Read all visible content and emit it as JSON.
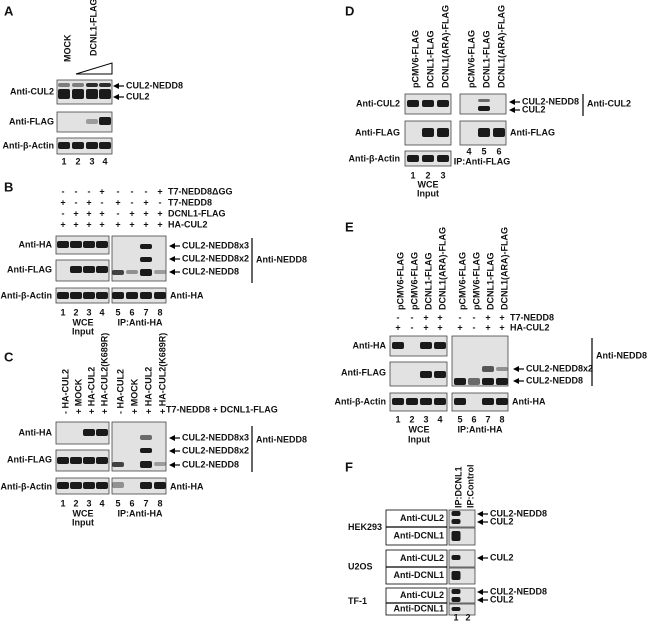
{
  "panel_a": {
    "label": "A",
    "lanes": [
      "MOCK",
      "DCNL1-FLAG"
    ],
    "rows": [
      "Anti-CUL2",
      "Anti-FLAG",
      "Anti-β-Actin"
    ],
    "bands": [
      "CUL2-NEDD8",
      "CUL2"
    ],
    "lane_numbers": [
      "1",
      "2",
      "3",
      "4"
    ]
  },
  "panel_b": {
    "label": "B",
    "conditions": [
      {
        "name": "T7-NEDD8ΔGG",
        "signs": [
          "-",
          "-",
          "-",
          "+",
          "-",
          "-",
          "-",
          "+"
        ]
      },
      {
        "name": "T7-NEDD8",
        "signs": [
          "+",
          "-",
          "+",
          "-",
          "+",
          "-",
          "+",
          "-"
        ]
      },
      {
        "name": "DCNL1-FLAG",
        "signs": [
          "-",
          "+",
          "+",
          "+",
          "-",
          "+",
          "+",
          "+"
        ]
      },
      {
        "name": "HA-CUL2",
        "signs": [
          "+",
          "+",
          "+",
          "+",
          "+",
          "+",
          "+",
          "+"
        ]
      }
    ],
    "rows": [
      "Anti-HA",
      "Anti-FLAG",
      "Anti-β-Actin"
    ],
    "bands": [
      "CUL2-NEDD8x3",
      "CUL2-NEDD8x2",
      "CUL2-NEDD8"
    ],
    "probe": "Anti-NEDD8",
    "ip_probe": "Anti-HA",
    "lane_numbers": [
      "1",
      "2",
      "3",
      "4",
      "5",
      "6",
      "7",
      "8"
    ],
    "input_label": [
      "WCE",
      "Input"
    ],
    "ip_label": "IP:Anti-HA"
  },
  "panel_c": {
    "label": "C",
    "lanes": [
      "- HA-CUL2",
      "+ MOCK",
      "+ HA-CUL2",
      "+ HA-CUL2(K689R)",
      "- HA-CUL2",
      "+ MOCK",
      "+ HA-CUL2",
      "+ HA-CUL2(K689R)"
    ],
    "condition": "T7-NEDD8 + DCNL1-FLAG",
    "rows": [
      "Anti-HA",
      "Anti-FLAG",
      "Anti-β-Actin"
    ],
    "bands": [
      "CUL2-NEDD8x3",
      "CUL2-NEDD8x2",
      "CUL2-NEDD8"
    ],
    "probe": "Anti-NEDD8",
    "ip_probe": "Anti-HA",
    "lane_numbers": [
      "1",
      "2",
      "3",
      "4",
      "5",
      "6",
      "7",
      "8"
    ],
    "input_label": [
      "WCE",
      "Input"
    ],
    "ip_label": "IP:Anti-HA"
  },
  "panel_d": {
    "label": "D",
    "lanes": [
      "pCMV6-FLAG",
      "DCNL1-FLAG",
      "DCNL1(ARA)-FLAG",
      "pCMV6-FLAG",
      "DCNL1-FLAG",
      "DCNL1(ARA)-FLAG"
    ],
    "rows": [
      "Anti-CUL2",
      "Anti-FLAG",
      "Anti-β-Actin"
    ],
    "bands": [
      "CUL2-NEDD8",
      "CUL2"
    ],
    "probe": "Anti-CUL2",
    "ip_probe": "Anti-FLAG",
    "lane_numbers": [
      "1",
      "2",
      "3",
      "4",
      "5",
      "6"
    ],
    "input_label": [
      "WCE",
      "Input"
    ],
    "ip_label": "IP:Anti-FLAG"
  },
  "panel_e": {
    "label": "E",
    "lanes": [
      "pCMV6-FLAG",
      "pCMV6-FLAG",
      "DCNL1-FLAG",
      "DCNL1(ARA)-FLAG",
      "pCMV6-FLAG",
      "pCMV6-FLAG",
      "DCNL1-FLAG",
      "DCNL1(ARA)-FLAG"
    ],
    "conditions": [
      {
        "name": "T7-NEDD8",
        "signs": [
          "-",
          "-",
          "+",
          "+",
          "-",
          "-",
          "+",
          "+"
        ]
      },
      {
        "name": "HA-CUL2",
        "signs": [
          "+",
          "-",
          "+",
          "+",
          "+",
          "-",
          "+",
          "+"
        ]
      }
    ],
    "rows": [
      "Anti-HA",
      "Anti-FLAG",
      "Anti-β-Actin"
    ],
    "bands": [
      "CUL2-NEDD8x2",
      "CUL2-NEDD8"
    ],
    "probe": "Anti-NEDD8",
    "ip_probe": "Anti-HA",
    "lane_numbers": [
      "1",
      "2",
      "3",
      "4",
      "5",
      "6",
      "7",
      "8"
    ],
    "input_label": [
      "WCE",
      "Input"
    ],
    "ip_label": "IP:Anti-HA"
  },
  "panel_f": {
    "label": "F",
    "lanes": [
      "IP:DCNL1",
      "IP:Control"
    ],
    "cell_lines": [
      {
        "name": "HEK293",
        "rows": [
          "Anti-CUL2",
          "Anti-DCNL1"
        ],
        "bands": [
          "CUL2-NEDD8",
          "CUL2"
        ]
      },
      {
        "name": "U2OS",
        "rows": [
          "Anti-CUL2",
          "Anti-DCNL1"
        ],
        "bands": [
          "CUL2"
        ]
      },
      {
        "name": "TF-1",
        "rows": [
          "Anti-CUL2",
          "Anti-DCNL1"
        ],
        "bands": [
          "CUL2-NEDD8",
          "CUL2"
        ]
      }
    ],
    "lane_numbers": [
      "1",
      "2"
    ]
  }
}
